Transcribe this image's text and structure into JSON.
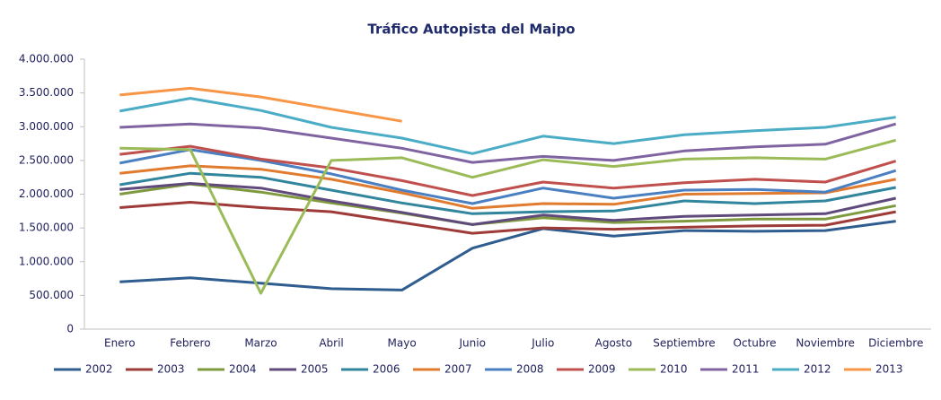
{
  "chart_data": {
    "type": "line",
    "title": "Tráfico Autopista del Maipo",
    "categories": [
      "Enero",
      "Febrero",
      "Marzo",
      "Abril",
      "Mayo",
      "Junio",
      "Julio",
      "Agosto",
      "Septiembre",
      "Octubre",
      "Noviembre",
      "Diciembre"
    ],
    "ylim": [
      0,
      4000000
    ],
    "yticks": [
      0,
      {
        "value": 500000,
        "label": "500.000"
      },
      {
        "value": 1000000,
        "label": "1.000.000"
      },
      {
        "value": 1500000,
        "label": "1.500.000"
      },
      {
        "value": 2000000,
        "label": "2.000.000"
      },
      {
        "value": 2500000,
        "label": "2.500.000"
      },
      {
        "value": 3000000,
        "label": "3.000.000"
      },
      {
        "value": 3500000,
        "label": "3.500.000"
      },
      {
        "value": 4000000,
        "label": "4.000.000"
      }
    ],
    "grid": false,
    "legend": "bottom",
    "series": [
      {
        "name": "2002",
        "color": "#2f5d8f",
        "values": [
          700000,
          760000,
          680000,
          600000,
          580000,
          1200000,
          1490000,
          1380000,
          1460000,
          1450000,
          1460000,
          1600000
        ]
      },
      {
        "name": "2003",
        "color": "#9e3b38",
        "values": [
          1800000,
          1880000,
          1800000,
          1740000,
          1580000,
          1420000,
          1500000,
          1480000,
          1510000,
          1530000,
          1540000,
          1740000
        ]
      },
      {
        "name": "2004",
        "color": "#7f9a3e",
        "values": [
          2000000,
          2150000,
          2030000,
          1870000,
          1720000,
          1550000,
          1650000,
          1580000,
          1600000,
          1630000,
          1630000,
          1830000
        ]
      },
      {
        "name": "2005",
        "color": "#604a7b",
        "values": [
          2070000,
          2160000,
          2090000,
          1900000,
          1730000,
          1550000,
          1690000,
          1610000,
          1670000,
          1690000,
          1710000,
          1940000
        ]
      },
      {
        "name": "2006",
        "color": "#31859c",
        "values": [
          2140000,
          2310000,
          2250000,
          2060000,
          1870000,
          1710000,
          1740000,
          1750000,
          1900000,
          1860000,
          1900000,
          2100000
        ]
      },
      {
        "name": "2007",
        "color": "#e07b2f",
        "values": [
          2310000,
          2420000,
          2370000,
          2220000,
          2020000,
          1790000,
          1860000,
          1850000,
          2000000,
          2010000,
          2020000,
          2220000
        ]
      },
      {
        "name": "2008",
        "color": "#4a7fc1",
        "values": [
          2460000,
          2660000,
          2500000,
          2300000,
          2060000,
          1860000,
          2090000,
          1940000,
          2060000,
          2070000,
          2030000,
          2350000
        ]
      },
      {
        "name": "2009",
        "color": "#c0504d",
        "values": [
          2590000,
          2710000,
          2520000,
          2390000,
          2200000,
          1980000,
          2180000,
          2090000,
          2170000,
          2220000,
          2180000,
          2490000
        ]
      },
      {
        "name": "2010",
        "color": "#9bbb59",
        "values": [
          2680000,
          2660000,
          530000,
          2500000,
          2540000,
          2250000,
          2510000,
          2410000,
          2520000,
          2540000,
          2520000,
          2800000
        ]
      },
      {
        "name": "2011",
        "color": "#8064a2",
        "values": [
          2990000,
          3040000,
          2980000,
          2830000,
          2680000,
          2470000,
          2560000,
          2500000,
          2640000,
          2700000,
          2740000,
          3040000
        ]
      },
      {
        "name": "2012",
        "color": "#4bacc6",
        "values": [
          3230000,
          3420000,
          3240000,
          2990000,
          2830000,
          2600000,
          2860000,
          2750000,
          2880000,
          2940000,
          2990000,
          3140000
        ]
      },
      {
        "name": "2013",
        "color": "#f79646",
        "values": [
          3470000,
          3570000,
          3440000,
          3260000,
          3080000,
          null,
          null,
          null,
          null,
          null,
          null,
          null
        ]
      }
    ]
  }
}
